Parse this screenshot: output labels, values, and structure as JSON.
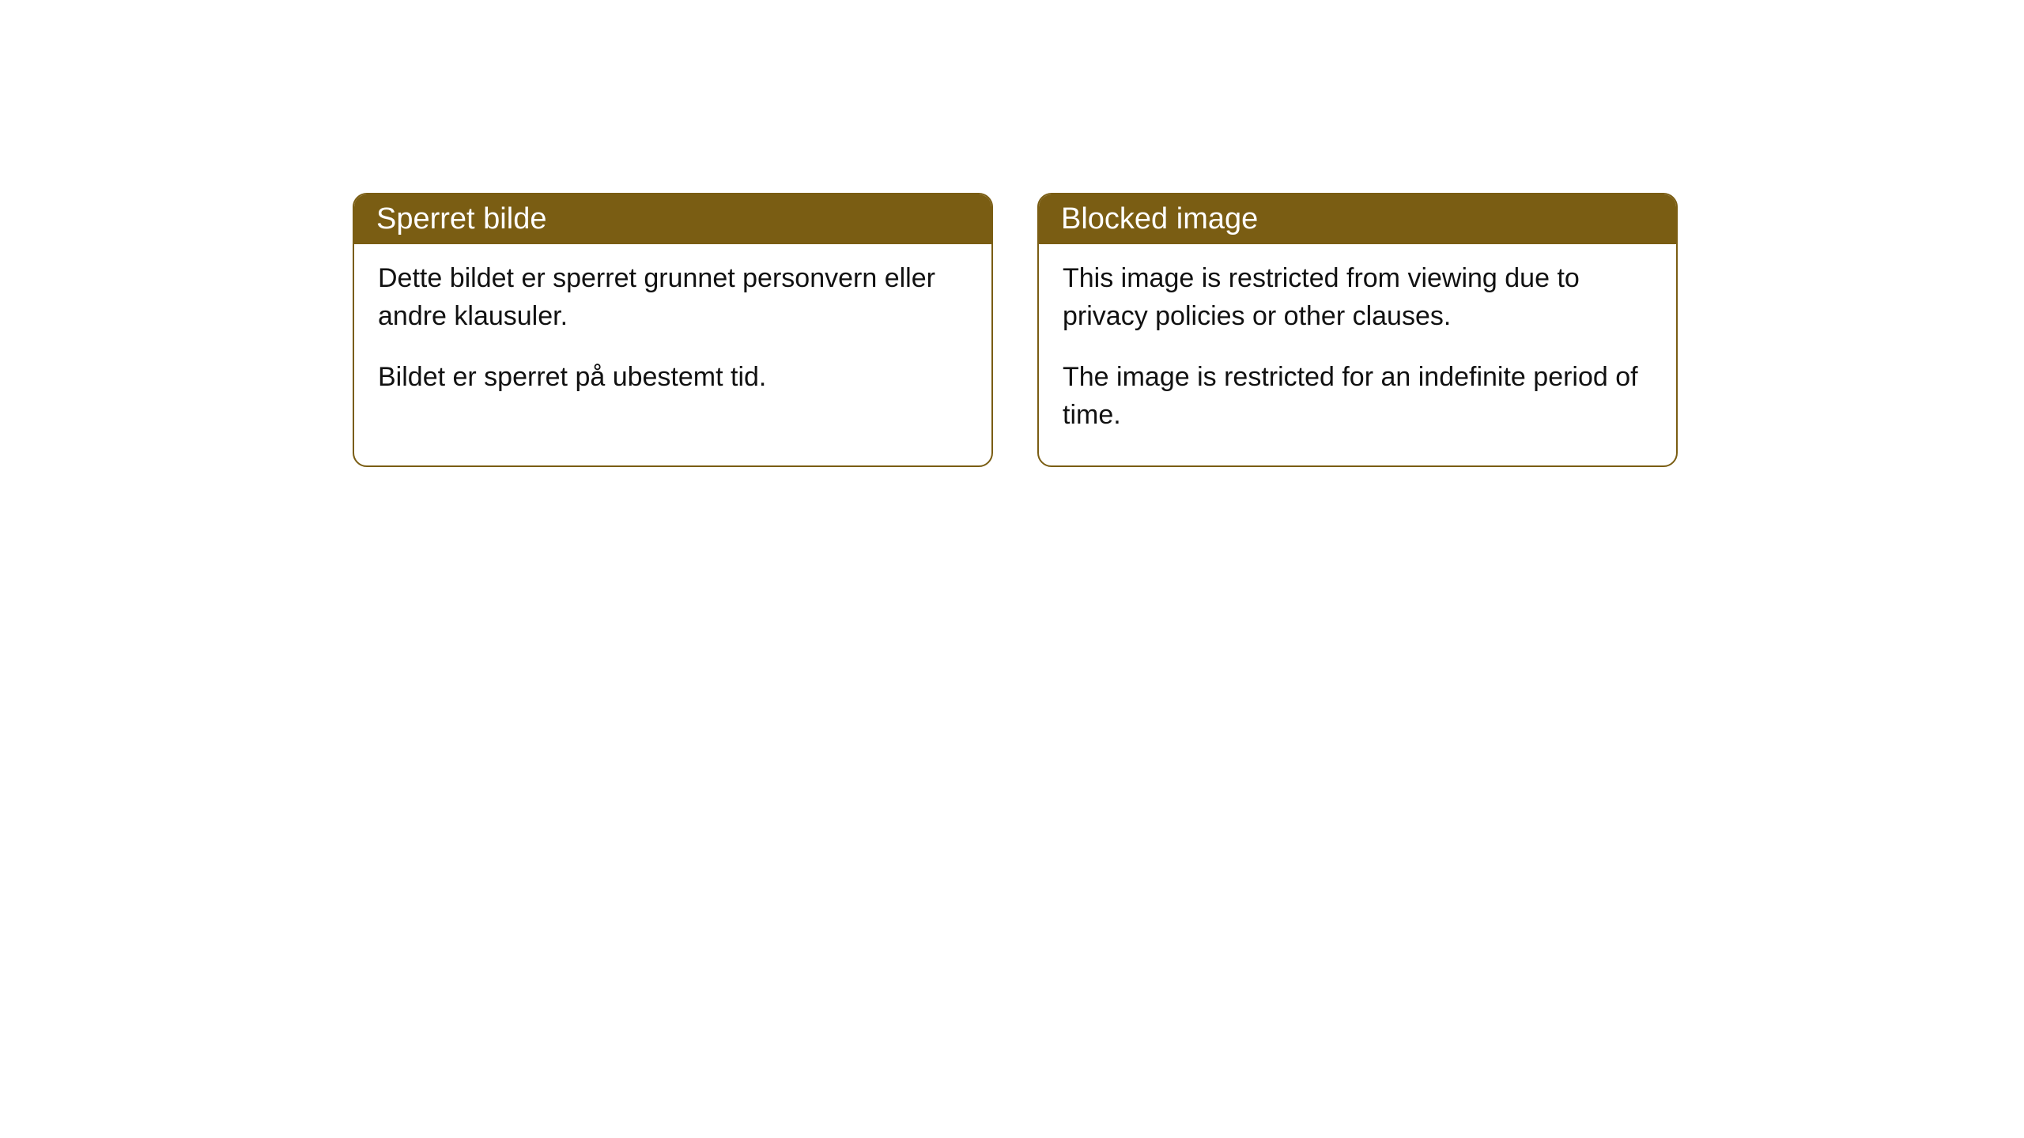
{
  "colors": {
    "card_border": "#7a5d13",
    "header_bg": "#7a5d13",
    "header_text": "#ffffff",
    "body_bg": "#ffffff",
    "body_text": "#111111"
  },
  "cards": [
    {
      "title": "Sperret bilde",
      "para1": "Dette bildet er sperret grunnet personvern eller andre klausuler.",
      "para2": "Bildet er sperret på ubestemt tid."
    },
    {
      "title": "Blocked image",
      "para1": "This image is restricted from viewing due to privacy policies or other clauses.",
      "para2": "The image is restricted for an indefinite period of time."
    }
  ]
}
